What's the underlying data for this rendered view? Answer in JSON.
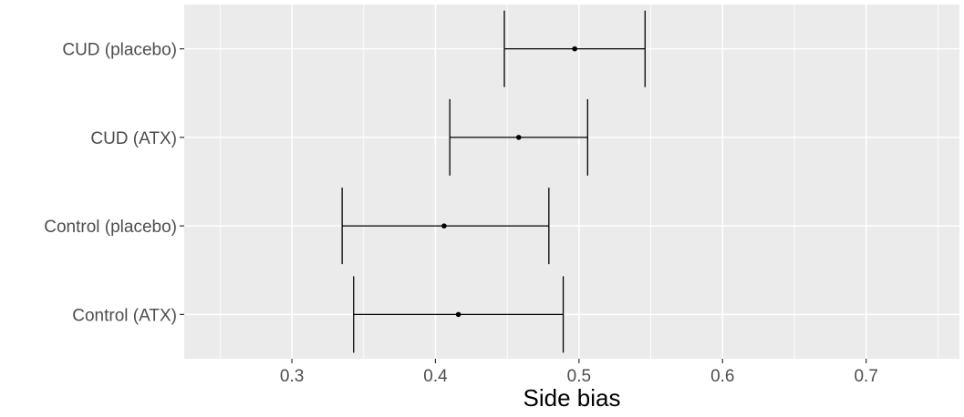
{
  "chart_data": {
    "type": "errorbar",
    "title": "",
    "xlabel": "Side bias",
    "ylabel": "",
    "xlim": [
      0.225,
      0.765
    ],
    "x_ticks": [
      0.3,
      0.4,
      0.5,
      0.6,
      0.7
    ],
    "x_tick_labels": [
      "0.3",
      "0.4",
      "0.5",
      "0.6",
      "0.7"
    ],
    "categories": [
      "CUD (placebo)",
      "CUD (ATX)",
      "Control (placebo)",
      "Control (ATX)"
    ],
    "points": [
      {
        "label": "CUD (placebo)",
        "x": 0.497,
        "low": 0.448,
        "high": 0.546
      },
      {
        "label": "CUD (ATX)",
        "x": 0.458,
        "low": 0.41,
        "high": 0.506
      },
      {
        "label": "Control (placebo)",
        "x": 0.406,
        "low": 0.335,
        "high": 0.479
      },
      {
        "label": "Control (ATX)",
        "x": 0.416,
        "low": 0.343,
        "high": 0.489
      }
    ],
    "grid": true,
    "legend": "none",
    "colors": {
      "panel": "#ebebeb",
      "grid": "#ffffff",
      "mark": "#000000",
      "text": "#4d4d4d"
    }
  }
}
